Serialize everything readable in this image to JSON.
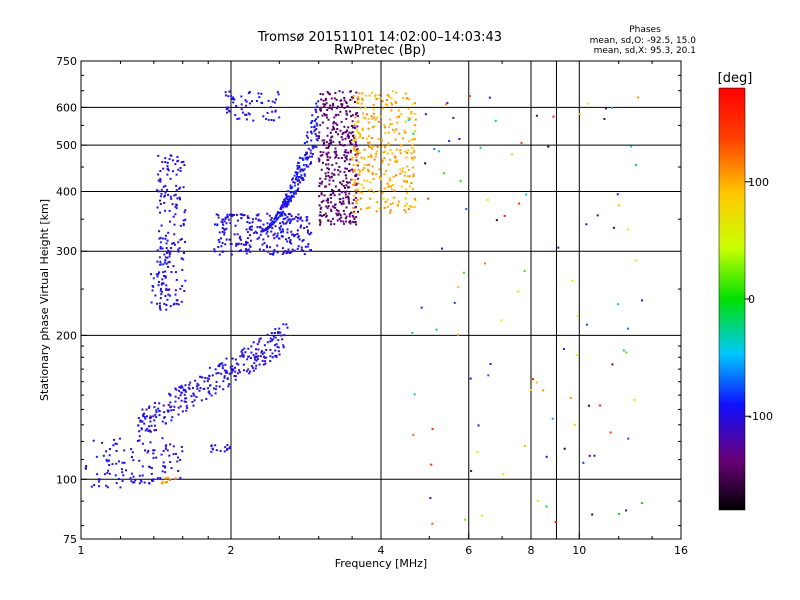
{
  "chart_data": {
    "type": "scatter",
    "title_line1": "Tromsø 20151101 14:02:00–14:03:43",
    "title_line2": "RwPretec (Bp)",
    "xlabel": "Frequency [MHz]",
    "ylabel": "Stationary phase Virtual Height [km]",
    "x_scale": "log",
    "y_scale": "log",
    "xlim": [
      1,
      16
    ],
    "ylim": [
      75,
      750
    ],
    "x_ticks": [
      {
        "value": 1,
        "label": "1"
      },
      {
        "value": 2,
        "label": "2"
      },
      {
        "value": 4,
        "label": "4"
      },
      {
        "value": 6,
        "label": "6"
      },
      {
        "value": 8,
        "label": "8"
      },
      {
        "value": 10,
        "label": "10"
      },
      {
        "value": 16,
        "label": "16"
      }
    ],
    "x_gridlines": [
      2,
      4,
      6,
      8,
      9,
      10
    ],
    "y_ticks": [
      {
        "value": 75,
        "label": "75"
      },
      {
        "value": 100,
        "label": "100"
      },
      {
        "value": 200,
        "label": "200"
      },
      {
        "value": 300,
        "label": "300"
      },
      {
        "value": 400,
        "label": "400"
      },
      {
        "value": 500,
        "label": "500"
      },
      {
        "value": 600,
        "label": "600"
      },
      {
        "value": 750,
        "label": "750"
      }
    ],
    "y_gridlines": [
      100,
      200,
      300,
      400,
      500,
      600
    ],
    "grid": true,
    "stats": {
      "heading": "Phases",
      "line_o": "mean, sd,O:  -92.5, 15.0",
      "line_x": "mean, sd,X:  95.3, 20.1"
    },
    "colorbar": {
      "label": "[deg]",
      "min": -180,
      "max": 180,
      "ticks": [
        {
          "value": 100,
          "label": "100"
        },
        {
          "value": 0,
          "label": "0"
        },
        {
          "value": -100,
          "label": "-100"
        }
      ]
    },
    "clusters": [
      {
        "name": "E-region trace low",
        "x_range": [
          1.02,
          1.6
        ],
        "y_range": [
          100,
          122
        ],
        "n": 90,
        "phase": -100
      },
      {
        "name": "Es near 100 km",
        "x_range": [
          1.05,
          1.4
        ],
        "y_range": [
          96,
          101
        ],
        "n": 25,
        "phase": -100
      },
      {
        "name": "Es yellow",
        "x_range": [
          1.45,
          1.55
        ],
        "y_range": [
          98,
          101
        ],
        "n": 10,
        "phase": 110
      },
      {
        "name": "E-layer rising",
        "x_range": [
          1.3,
          2.6
        ],
        "y_range": [
          120,
          215
        ],
        "n": 300,
        "phase": -100
      },
      {
        "name": "E spur 115",
        "x_range": [
          1.8,
          2.0
        ],
        "y_range": [
          114,
          118
        ],
        "n": 15,
        "phase": -105
      },
      {
        "name": "F1 vertical",
        "x_range": [
          1.42,
          1.62
        ],
        "y_range": [
          230,
          480
        ],
        "n": 160,
        "phase": -100
      },
      {
        "name": "F1 lower vertical",
        "x_range": [
          1.38,
          1.5
        ],
        "y_range": [
          225,
          320
        ],
        "n": 40,
        "phase": -95
      },
      {
        "name": "F2 base",
        "x_range": [
          1.85,
          2.9
        ],
        "y_range": [
          295,
          360
        ],
        "n": 260,
        "phase": -100
      },
      {
        "name": "F2 rising curve",
        "x_range": [
          2.3,
          3.0
        ],
        "y_range": [
          330,
          650
        ],
        "n": 260,
        "phase": -95
      },
      {
        "name": "F2 violet columns",
        "x_range": [
          3.0,
          3.6
        ],
        "y_range": [
          340,
          650
        ],
        "n": 380,
        "phase": -140
      },
      {
        "name": "F2 top blob",
        "x_range": [
          1.95,
          2.5
        ],
        "y_range": [
          560,
          650
        ],
        "n": 60,
        "phase": -100
      },
      {
        "name": "X trace yellow",
        "x_range": [
          3.5,
          4.7
        ],
        "y_range": [
          360,
          650
        ],
        "n": 320,
        "phase": 100
      },
      {
        "name": "Sparse noise",
        "x_range": [
          4.5,
          13.5
        ],
        "y_range": [
          80,
          650
        ],
        "n": 110,
        "phase": 0
      }
    ]
  }
}
